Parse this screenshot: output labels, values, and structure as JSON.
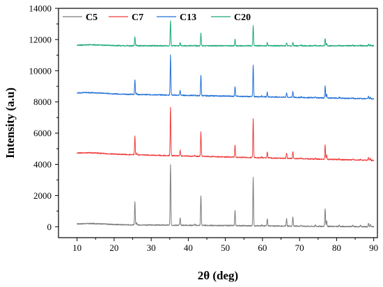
{
  "chart_data": {
    "type": "line",
    "title": "",
    "xlabel": "2θ (deg)",
    "ylabel": "Intensity (a.u)",
    "xlim": [
      5,
      91
    ],
    "ylim": [
      -700,
      14000
    ],
    "xticks": [
      10,
      20,
      30,
      40,
      50,
      60,
      70,
      80,
      90
    ],
    "yticks": [
      0,
      2000,
      4000,
      6000,
      8000,
      10000,
      12000,
      14000
    ],
    "grid": false,
    "legend_position": "top-left",
    "x_range": [
      10,
      90
    ],
    "peaks": [
      {
        "x": 25.6,
        "rel": 0.38
      },
      {
        "x": 26.1,
        "rel": 0.03
      },
      {
        "x": 35.2,
        "rel": 1.0
      },
      {
        "x": 37.8,
        "rel": 0.12
      },
      {
        "x": 41.7,
        "rel": 0.02
      },
      {
        "x": 43.4,
        "rel": 0.5
      },
      {
        "x": 52.6,
        "rel": 0.25
      },
      {
        "x": 57.5,
        "rel": 0.8
      },
      {
        "x": 59.8,
        "rel": 0.02
      },
      {
        "x": 61.3,
        "rel": 0.12
      },
      {
        "x": 66.5,
        "rel": 0.12
      },
      {
        "x": 68.2,
        "rel": 0.15
      },
      {
        "x": 70.4,
        "rel": 0.02
      },
      {
        "x": 74.3,
        "rel": 0.02
      },
      {
        "x": 76.9,
        "rel": 0.3
      },
      {
        "x": 77.3,
        "rel": 0.1
      },
      {
        "x": 80.7,
        "rel": 0.02
      },
      {
        "x": 84.4,
        "rel": 0.02
      },
      {
        "x": 86.5,
        "rel": 0.02
      },
      {
        "x": 88.6,
        "rel": 0.06
      },
      {
        "x": 89.1,
        "rel": 0.04
      }
    ],
    "series": [
      {
        "name": "C5",
        "color": "#7a7a7a",
        "baseline_start": 150,
        "baseline_end": 0,
        "max_intensity": 4000
      },
      {
        "name": "C7",
        "color": "#ef3b3b",
        "baseline_start": 4700,
        "baseline_end": 4250,
        "max_intensity": 7800
      },
      {
        "name": "C13",
        "color": "#1f6fd6",
        "baseline_start": 8550,
        "baseline_end": 8200,
        "max_intensity": 11100
      },
      {
        "name": "C20",
        "color": "#1ca87a",
        "baseline_start": 11600,
        "baseline_end": 11600,
        "max_intensity": 13200
      }
    ]
  }
}
